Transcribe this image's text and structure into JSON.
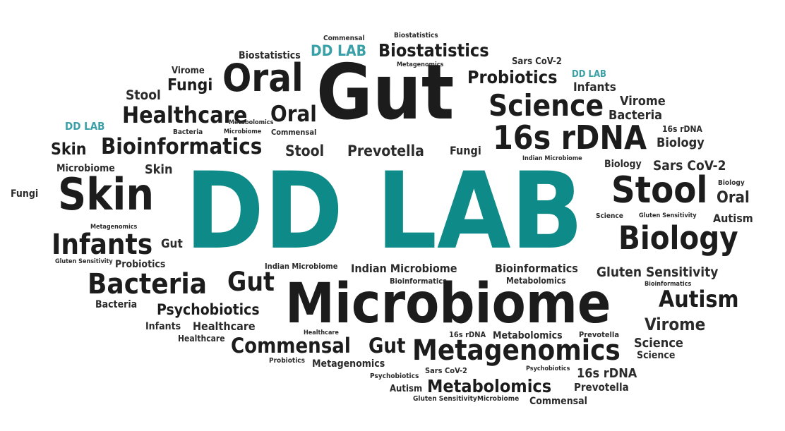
{
  "brand_color": "#0e8a88",
  "brand_color_light": "#3aa0a7",
  "text_color": "#2b2b2b",
  "words": [
    "Commensal",
    "Biostatistics",
    "DD LAB",
    "Biostatistics",
    "Metagenomics",
    "Biostatistics",
    "Sars CoV-2",
    "Virome",
    "Oral",
    "Gut",
    "Fungi",
    "Probiotics",
    "DD LAB",
    "Infants",
    "Stool",
    "Science",
    "Virome",
    "Healthcare",
    "Oral",
    "Bacteria",
    "Metabolomics",
    "DD LAB",
    "Bacteria",
    "Microbiome",
    "Commensal",
    "16s rDNA",
    "16s rDNA",
    "Biology",
    "Skin",
    "Bioinformatics",
    "Stool",
    "Prevotella",
    "Fungi",
    "Indian Microbiome",
    "Biology",
    "Sars CoV-2",
    "Microbiome",
    "Skin",
    "DD LAB",
    "Stool",
    "Biology",
    "Fungi",
    "Skin",
    "Oral",
    "Science",
    "Gluten Sensitivity",
    "Autism",
    "Metagenomics",
    "Biology",
    "Infants",
    "Gut",
    "Gluten Sensitivity",
    "Probiotics",
    "Indian Microbiome",
    "Indian Microbiome",
    "Bioinformatics",
    "Gluten Sensitivity",
    "Bacteria",
    "Gut",
    "Bioinformatics",
    "Metabolomics",
    "Bioinformatics",
    "Microbiome",
    "Autism",
    "Bacteria",
    "Psychobiotics",
    "Virome",
    "Infants",
    "Healthcare",
    "Healthcare",
    "16s rDNA",
    "Metabolomics",
    "Prevotella",
    "Commensal",
    "Gut",
    "Metagenomics",
    "Science",
    "Science",
    "Probiotics",
    "Metagenomics",
    "Psychobiotics",
    "Sars CoV-2",
    "Psychobiotics",
    "16s rDNA",
    "Autism",
    "Metabolomics",
    "Prevotella",
    "Gluten Sensitivity",
    "Microbiome",
    "Commensal"
  ]
}
